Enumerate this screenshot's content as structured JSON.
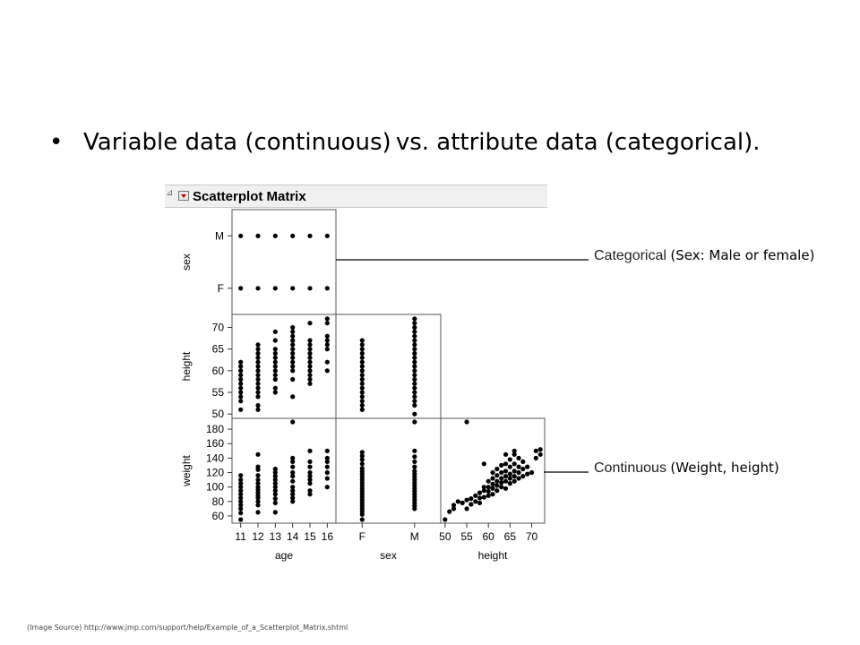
{
  "slide": {
    "bullet_text": "Variable data (continuous) vs. attribute data (categorical).",
    "bullet_glyph": "•",
    "source_note": "(Image Source) http://www.jmp.com/support/help/Example_of_a_Scatterplot_Matrix.shtml"
  },
  "figure": {
    "title": "Scatterplot Matrix",
    "disclosure_glyph": "⊿",
    "menu_icon": "red-dropdown-triangle-icon"
  },
  "callouts": {
    "categorical": {
      "label": "Categorical",
      "description": "(Sex: Male or female)"
    },
    "continuous": {
      "label": "Continuous",
      "description": "(Weight, height)"
    }
  },
  "chart_data": {
    "type": "scatter",
    "title": "Scatterplot Matrix",
    "variables": {
      "age": {
        "label": "age",
        "ticks": [
          "11",
          "12",
          "13",
          "14",
          "15",
          "16"
        ],
        "range": [
          10.5,
          16.5
        ]
      },
      "sex": {
        "label": "sex",
        "ticks": [
          "F",
          "M"
        ],
        "range": [
          0.5,
          2.5
        ]
      },
      "height": {
        "label": "height",
        "ticks": [
          "50",
          "55",
          "60",
          "65",
          "70"
        ],
        "range": [
          49,
          73
        ]
      },
      "weight": {
        "label": "weight",
        "ticks": [
          "60",
          "80",
          "100",
          "120",
          "140",
          "160",
          "180"
        ],
        "range": [
          50,
          195
        ]
      }
    },
    "panels": [
      {
        "x": "age",
        "y": "sex",
        "points": [
          [
            11,
            1
          ],
          [
            12,
            1
          ],
          [
            13,
            1
          ],
          [
            14,
            1
          ],
          [
            15,
            1
          ],
          [
            16,
            1
          ],
          [
            11,
            2
          ],
          [
            12,
            2
          ],
          [
            13,
            2
          ],
          [
            14,
            2
          ],
          [
            15,
            2
          ],
          [
            16,
            2
          ]
        ]
      },
      {
        "x": "age",
        "y": "height",
        "points": [
          [
            11,
            51
          ],
          [
            11,
            53
          ],
          [
            11,
            54
          ],
          [
            11,
            55
          ],
          [
            11,
            56
          ],
          [
            11,
            57
          ],
          [
            11,
            58
          ],
          [
            11,
            59
          ],
          [
            11,
            60
          ],
          [
            11,
            61
          ],
          [
            11,
            62
          ],
          [
            12,
            51
          ],
          [
            12,
            52
          ],
          [
            12,
            54
          ],
          [
            12,
            55
          ],
          [
            12,
            56
          ],
          [
            12,
            57
          ],
          [
            12,
            58
          ],
          [
            12,
            59
          ],
          [
            12,
            60
          ],
          [
            12,
            61
          ],
          [
            12,
            62
          ],
          [
            12,
            63
          ],
          [
            12,
            64
          ],
          [
            12,
            65
          ],
          [
            12,
            66
          ],
          [
            13,
            55
          ],
          [
            13,
            56
          ],
          [
            13,
            58
          ],
          [
            13,
            59
          ],
          [
            13,
            60
          ],
          [
            13,
            61
          ],
          [
            13,
            62
          ],
          [
            13,
            63
          ],
          [
            13,
            64
          ],
          [
            13,
            65
          ],
          [
            13,
            67
          ],
          [
            13,
            69
          ],
          [
            14,
            54
          ],
          [
            14,
            58
          ],
          [
            14,
            60
          ],
          [
            14,
            61
          ],
          [
            14,
            62
          ],
          [
            14,
            63
          ],
          [
            14,
            64
          ],
          [
            14,
            65
          ],
          [
            14,
            66
          ],
          [
            14,
            67
          ],
          [
            14,
            68
          ],
          [
            14,
            69
          ],
          [
            14,
            70
          ],
          [
            15,
            57
          ],
          [
            15,
            58
          ],
          [
            15,
            59
          ],
          [
            15,
            60
          ],
          [
            15,
            61
          ],
          [
            15,
            62
          ],
          [
            15,
            63
          ],
          [
            15,
            64
          ],
          [
            15,
            65
          ],
          [
            15,
            66
          ],
          [
            15,
            67
          ],
          [
            15,
            71
          ],
          [
            16,
            60
          ],
          [
            16,
            62
          ],
          [
            16,
            65
          ],
          [
            16,
            66
          ],
          [
            16,
            67
          ],
          [
            16,
            68
          ],
          [
            16,
            71
          ],
          [
            16,
            72
          ]
        ]
      },
      {
        "x": "sex",
        "y": "height",
        "points": [
          [
            1,
            51
          ],
          [
            1,
            52
          ],
          [
            1,
            53
          ],
          [
            1,
            54
          ],
          [
            1,
            55
          ],
          [
            1,
            56
          ],
          [
            1,
            57
          ],
          [
            1,
            58
          ],
          [
            1,
            59
          ],
          [
            1,
            60
          ],
          [
            1,
            61
          ],
          [
            1,
            62
          ],
          [
            1,
            63
          ],
          [
            1,
            64
          ],
          [
            1,
            65
          ],
          [
            1,
            66
          ],
          [
            1,
            67
          ],
          [
            2,
            50
          ],
          [
            2,
            52
          ],
          [
            2,
            53
          ],
          [
            2,
            54
          ],
          [
            2,
            55
          ],
          [
            2,
            56
          ],
          [
            2,
            57
          ],
          [
            2,
            58
          ],
          [
            2,
            59
          ],
          [
            2,
            60
          ],
          [
            2,
            61
          ],
          [
            2,
            62
          ],
          [
            2,
            63
          ],
          [
            2,
            64
          ],
          [
            2,
            65
          ],
          [
            2,
            66
          ],
          [
            2,
            67
          ],
          [
            2,
            68
          ],
          [
            2,
            69
          ],
          [
            2,
            70
          ],
          [
            2,
            71
          ],
          [
            2,
            72
          ]
        ]
      },
      {
        "x": "age",
        "y": "weight",
        "points": [
          [
            11,
            55
          ],
          [
            11,
            64
          ],
          [
            11,
            70
          ],
          [
            11,
            75
          ],
          [
            11,
            80
          ],
          [
            11,
            85
          ],
          [
            11,
            90
          ],
          [
            11,
            95
          ],
          [
            11,
            100
          ],
          [
            11,
            105
          ],
          [
            11,
            110
          ],
          [
            11,
            116
          ],
          [
            12,
            65
          ],
          [
            12,
            75
          ],
          [
            12,
            80
          ],
          [
            12,
            85
          ],
          [
            12,
            88
          ],
          [
            12,
            92
          ],
          [
            12,
            96
          ],
          [
            12,
            100
          ],
          [
            12,
            105
          ],
          [
            12,
            110
          ],
          [
            12,
            116
          ],
          [
            12,
            124
          ],
          [
            12,
            128
          ],
          [
            12,
            145
          ],
          [
            13,
            65
          ],
          [
            13,
            78
          ],
          [
            13,
            84
          ],
          [
            13,
            90
          ],
          [
            13,
            95
          ],
          [
            13,
            100
          ],
          [
            13,
            105
          ],
          [
            13,
            110
          ],
          [
            13,
            115
          ],
          [
            13,
            120
          ],
          [
            13,
            125
          ],
          [
            14,
            80
          ],
          [
            14,
            85
          ],
          [
            14,
            90
          ],
          [
            14,
            95
          ],
          [
            14,
            100
          ],
          [
            14,
            108
          ],
          [
            14,
            115
          ],
          [
            14,
            120
          ],
          [
            14,
            128
          ],
          [
            14,
            135
          ],
          [
            14,
            140
          ],
          [
            14,
            190
          ],
          [
            15,
            90
          ],
          [
            15,
            95
          ],
          [
            15,
            105
          ],
          [
            15,
            110
          ],
          [
            15,
            115
          ],
          [
            15,
            120
          ],
          [
            15,
            128
          ],
          [
            15,
            135
          ],
          [
            15,
            150
          ],
          [
            16,
            100
          ],
          [
            16,
            112
          ],
          [
            16,
            120
          ],
          [
            16,
            128
          ],
          [
            16,
            135
          ],
          [
            16,
            140
          ],
          [
            16,
            150
          ]
        ]
      },
      {
        "x": "sex",
        "y": "weight",
        "points": [
          [
            1,
            55
          ],
          [
            1,
            62
          ],
          [
            1,
            66
          ],
          [
            1,
            70
          ],
          [
            1,
            74
          ],
          [
            1,
            78
          ],
          [
            1,
            82
          ],
          [
            1,
            86
          ],
          [
            1,
            90
          ],
          [
            1,
            94
          ],
          [
            1,
            98
          ],
          [
            1,
            102
          ],
          [
            1,
            106
          ],
          [
            1,
            110
          ],
          [
            1,
            114
          ],
          [
            1,
            118
          ],
          [
            1,
            122
          ],
          [
            1,
            126
          ],
          [
            1,
            132
          ],
          [
            1,
            138
          ],
          [
            1,
            143
          ],
          [
            1,
            148
          ],
          [
            2,
            70
          ],
          [
            2,
            74
          ],
          [
            2,
            78
          ],
          [
            2,
            82
          ],
          [
            2,
            86
          ],
          [
            2,
            90
          ],
          [
            2,
            94
          ],
          [
            2,
            98
          ],
          [
            2,
            102
          ],
          [
            2,
            106
          ],
          [
            2,
            110
          ],
          [
            2,
            114
          ],
          [
            2,
            118
          ],
          [
            2,
            122
          ],
          [
            2,
            128
          ],
          [
            2,
            135
          ],
          [
            2,
            142
          ],
          [
            2,
            150
          ],
          [
            2,
            190
          ]
        ]
      },
      {
        "x": "height",
        "y": "weight",
        "points": [
          [
            50,
            55
          ],
          [
            51,
            66
          ],
          [
            52,
            70
          ],
          [
            52,
            75
          ],
          [
            53,
            80
          ],
          [
            54,
            78
          ],
          [
            55,
            82
          ],
          [
            55,
            70
          ],
          [
            56,
            76
          ],
          [
            56,
            84
          ],
          [
            57,
            80
          ],
          [
            57,
            88
          ],
          [
            58,
            85
          ],
          [
            58,
            92
          ],
          [
            58,
            78
          ],
          [
            59,
            86
          ],
          [
            59,
            95
          ],
          [
            59,
            100
          ],
          [
            60,
            88
          ],
          [
            60,
            94
          ],
          [
            60,
            100
          ],
          [
            60,
            108
          ],
          [
            61,
            90
          ],
          [
            61,
            98
          ],
          [
            61,
            104
          ],
          [
            61,
            112
          ],
          [
            62,
            95
          ],
          [
            62,
            102
          ],
          [
            62,
            108
          ],
          [
            62,
            116
          ],
          [
            62,
            125
          ],
          [
            63,
            100
          ],
          [
            63,
            106
          ],
          [
            63,
            112
          ],
          [
            63,
            120
          ],
          [
            63,
            130
          ],
          [
            64,
            98
          ],
          [
            64,
            108
          ],
          [
            64,
            115
          ],
          [
            64,
            122
          ],
          [
            64,
            145
          ],
          [
            65,
            105
          ],
          [
            65,
            112
          ],
          [
            65,
            118
          ],
          [
            65,
            128
          ],
          [
            65,
            138
          ],
          [
            66,
            108
          ],
          [
            66,
            115
          ],
          [
            66,
            122
          ],
          [
            66,
            132
          ],
          [
            66,
            145
          ],
          [
            67,
            112
          ],
          [
            67,
            120
          ],
          [
            67,
            128
          ],
          [
            67,
            140
          ],
          [
            68,
            115
          ],
          [
            68,
            125
          ],
          [
            68,
            135
          ],
          [
            69,
            118
          ],
          [
            69,
            128
          ],
          [
            70,
            120
          ],
          [
            71,
            140
          ],
          [
            71,
            150
          ],
          [
            72,
            145
          ],
          [
            72,
            152
          ],
          [
            55,
            190
          ],
          [
            59,
            132
          ],
          [
            61,
            120
          ],
          [
            64,
            132
          ],
          [
            66,
            150
          ]
        ]
      }
    ],
    "grid": false,
    "legend": "none"
  }
}
